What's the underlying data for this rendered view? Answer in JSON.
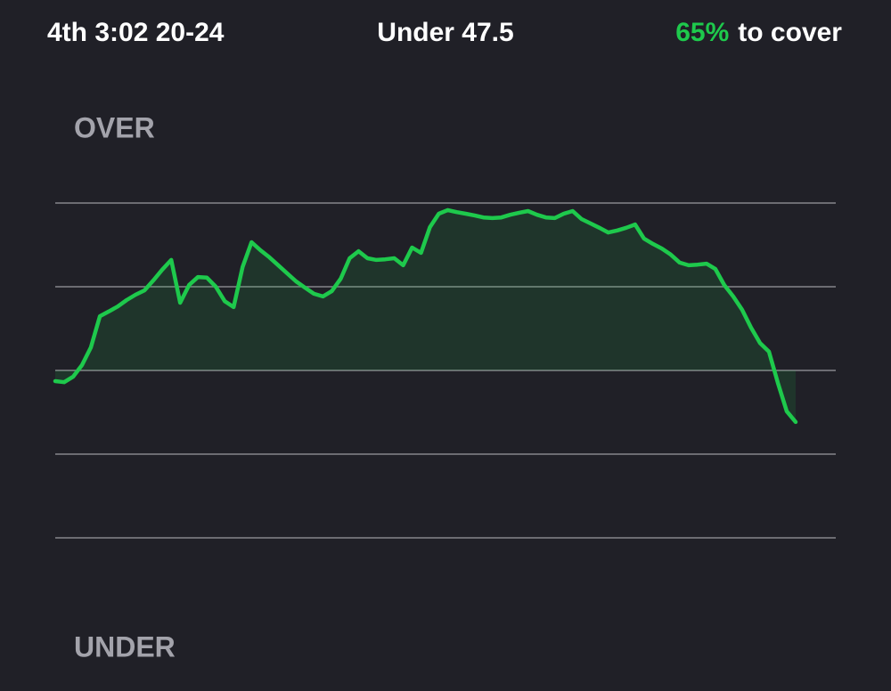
{
  "header": {
    "clock": "4th 3:02 20-24",
    "line": "Under 47.5",
    "percent": "65%",
    "percent_text": "to cover"
  },
  "chart_data": {
    "type": "line",
    "top_label": "OVER",
    "bottom_label": "UNDER",
    "color": "#1ec94c",
    "ylim": [
      0,
      100
    ],
    "yticks": [
      0,
      25,
      50,
      75,
      100
    ],
    "grid": true,
    "values": [
      46.8,
      46.5,
      48.1,
      51.6,
      56.9,
      66.2,
      67.6,
      69.1,
      71.0,
      72.6,
      73.9,
      76.9,
      80.1,
      83.0,
      70.2,
      75.5,
      77.9,
      77.7,
      75.0,
      70.7,
      68.9,
      80.9,
      88.3,
      85.9,
      83.8,
      81.4,
      79.0,
      76.6,
      74.7,
      72.9,
      72.1,
      73.7,
      77.4,
      83.5,
      85.6,
      83.5,
      83.0,
      83.2,
      83.5,
      81.4,
      86.7,
      85.1,
      92.8,
      96.8,
      97.9,
      97.3,
      96.8,
      96.3,
      95.7,
      95.5,
      95.7,
      96.5,
      97.1,
      97.6,
      96.5,
      95.7,
      95.5,
      96.8,
      97.6,
      95.2,
      93.9,
      92.6,
      91.2,
      91.8,
      92.6,
      93.6,
      89.4,
      87.8,
      86.4,
      84.6,
      82.2,
      81.4,
      81.6,
      81.9,
      80.3,
      75.5,
      72.1,
      68.1,
      62.8,
      58.2,
      55.6,
      46.3,
      37.8,
      34.6
    ]
  }
}
